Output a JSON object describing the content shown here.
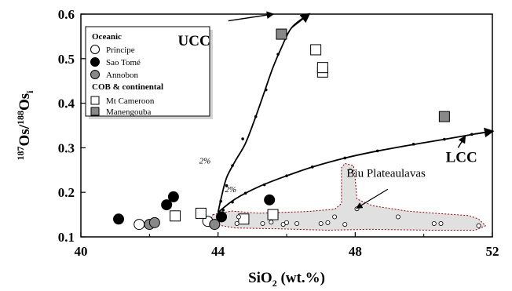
{
  "chart_data": {
    "type": "scatter",
    "title": "",
    "xlabel": {
      "main": "SiO",
      "sub": "2",
      "rest": " (wt.%)"
    },
    "ylabel": {
      "sup1": "187",
      "mid": "Os/",
      "sup2": "188",
      "main": "Os",
      "sub": "i"
    },
    "xlim": [
      40,
      52
    ],
    "ylim": [
      0.1,
      0.6
    ],
    "xticks": [
      40,
      44,
      48,
      52
    ],
    "yticks": [
      0.1,
      0.2,
      0.3,
      0.4,
      0.5,
      0.6
    ],
    "xtick_labels": [
      "40",
      "44",
      "48",
      "52"
    ],
    "ytick_labels": [
      "0.1",
      "0.2",
      "0.3",
      "0.4",
      "0.5",
      "0.6"
    ],
    "grid": false,
    "legend": {
      "placement": "top-left",
      "groups": [
        {
          "heading": "Oceanic",
          "items": [
            {
              "label": "Principe",
              "series": "principe"
            },
            {
              "label": "Sao Tomé",
              "series": "sao_tome"
            },
            {
              "label": "Annobon",
              "series": "annobon"
            }
          ]
        },
        {
          "heading": "COB & continental",
          "items": [
            {
              "label": "Mt Cameroon",
              "series": "mt_cameroon"
            },
            {
              "label": "Manengouba",
              "series": "manengouba"
            }
          ]
        }
      ]
    },
    "series": [
      {
        "id": "principe",
        "name": "Principe",
        "marker": "circle",
        "fill": "#ffffff",
        "stroke": "#000000",
        "points": [
          [
            41.7,
            0.128
          ],
          [
            43.7,
            0.135
          ]
        ]
      },
      {
        "id": "sao_tome",
        "name": "Sao Tomé",
        "marker": "circle",
        "fill": "#000000",
        "stroke": "#000000",
        "points": [
          [
            41.1,
            0.14
          ],
          [
            42.5,
            0.172
          ],
          [
            42.7,
            0.19
          ],
          [
            44.1,
            0.145
          ],
          [
            45.5,
            0.183
          ]
        ]
      },
      {
        "id": "annobon",
        "name": "Annobon",
        "marker": "circle",
        "fill": "#888888",
        "stroke": "#000000",
        "points": [
          [
            42.0,
            0.128
          ],
          [
            42.15,
            0.132
          ],
          [
            43.9,
            0.128
          ]
        ]
      },
      {
        "id": "mt_cameroon",
        "name": "Mt Cameroon",
        "marker": "square",
        "fill": "#ffffff",
        "stroke": "#000000",
        "points": [
          [
            42.75,
            0.147
          ],
          [
            43.5,
            0.153
          ],
          [
            44.75,
            0.14
          ],
          [
            45.6,
            0.15
          ],
          [
            46.85,
            0.52
          ],
          [
            47.05,
            0.47
          ],
          [
            47.05,
            0.48
          ]
        ]
      },
      {
        "id": "manengouba",
        "name": "Manengouba",
        "marker": "square",
        "fill": "#888888",
        "stroke": "#000000",
        "points": [
          [
            45.85,
            0.555
          ],
          [
            50.6,
            0.37
          ]
        ]
      },
      {
        "id": "biu",
        "name": "",
        "marker": "small-circle",
        "fill": "#ffffff",
        "stroke": "#000000",
        "points": [
          [
            44.55,
            0.13
          ],
          [
            44.6,
            0.145
          ],
          [
            45.3,
            0.13
          ],
          [
            45.55,
            0.133
          ],
          [
            45.9,
            0.128
          ],
          [
            46.0,
            0.132
          ],
          [
            46.3,
            0.13
          ],
          [
            47.0,
            0.13
          ],
          [
            47.2,
            0.132
          ],
          [
            47.4,
            0.145
          ],
          [
            47.7,
            0.128
          ],
          [
            47.85,
            0.248
          ],
          [
            48.05,
            0.163
          ],
          [
            49.25,
            0.145
          ],
          [
            50.3,
            0.13
          ],
          [
            50.5,
            0.13
          ],
          [
            51.6,
            0.125
          ]
        ]
      }
    ],
    "curves": [
      {
        "id": "ucc",
        "label": "UCC",
        "label_at": [
          43.3,
          0.53
        ],
        "points": [
          [
            44.0,
            0.155
          ],
          [
            44.1,
            0.19
          ],
          [
            44.25,
            0.233
          ],
          [
            44.5,
            0.27
          ],
          [
            44.8,
            0.31
          ],
          [
            45.1,
            0.37
          ],
          [
            45.35,
            0.425
          ],
          [
            45.6,
            0.48
          ],
          [
            45.85,
            0.525
          ],
          [
            46.15,
            0.57
          ],
          [
            46.65,
            0.6
          ]
        ]
      },
      {
        "id": "lcc",
        "label": "LCC",
        "label_at": [
          51.1,
          0.268
        ],
        "points": [
          [
            44.0,
            0.155
          ],
          [
            44.5,
            0.185
          ],
          [
            45.2,
            0.213
          ],
          [
            46.0,
            0.237
          ],
          [
            46.8,
            0.258
          ],
          [
            47.7,
            0.277
          ],
          [
            48.6,
            0.292
          ],
          [
            49.6,
            0.306
          ],
          [
            50.6,
            0.319
          ],
          [
            51.5,
            0.331
          ],
          [
            52.0,
            0.337
          ]
        ]
      }
    ],
    "curve_ticks": [
      {
        "on": "ucc",
        "points": [
          [
            44.08,
            0.18
          ],
          [
            44.25,
            0.215
          ],
          [
            44.42,
            0.26
          ],
          [
            44.72,
            0.32
          ],
          [
            45.1,
            0.37
          ],
          [
            45.4,
            0.43
          ],
          [
            45.75,
            0.51
          ],
          [
            46.0,
            0.555
          ]
        ]
      },
      {
        "on": "lcc",
        "points": [
          [
            44.15,
            0.16
          ],
          [
            44.42,
            0.178
          ],
          [
            44.8,
            0.198
          ],
          [
            45.35,
            0.217
          ],
          [
            46.0,
            0.237
          ],
          [
            46.75,
            0.257
          ],
          [
            47.7,
            0.277
          ],
          [
            48.65,
            0.293
          ],
          [
            49.7,
            0.308
          ],
          [
            50.6,
            0.319
          ],
          [
            51.4,
            0.33
          ]
        ]
      }
    ],
    "curve_pct_labels": [
      {
        "text": "2%",
        "at": [
          43.45,
          0.265
        ]
      },
      {
        "text": "2%",
        "at": [
          44.2,
          0.2
        ]
      }
    ],
    "field": {
      "label": "Biu Plateaulavas",
      "label_at": [
        48.9,
        0.235
      ],
      "fill": "#e0e0e0",
      "stroke": "#990000",
      "outline": [
        [
          43.85,
          0.15
        ],
        [
          44.4,
          0.158
        ],
        [
          45.2,
          0.153
        ],
        [
          45.9,
          0.155
        ],
        [
          46.6,
          0.157
        ],
        [
          47.4,
          0.162
        ],
        [
          47.6,
          0.175
        ],
        [
          47.6,
          0.255
        ],
        [
          47.7,
          0.265
        ],
        [
          47.95,
          0.26
        ],
        [
          48.0,
          0.23
        ],
        [
          48.05,
          0.185
        ],
        [
          48.5,
          0.17
        ],
        [
          49.5,
          0.158
        ],
        [
          50.5,
          0.152
        ],
        [
          51.3,
          0.148
        ],
        [
          51.6,
          0.14
        ],
        [
          51.8,
          0.125
        ],
        [
          51.5,
          0.115
        ],
        [
          50.2,
          0.115
        ],
        [
          48.4,
          0.117
        ],
        [
          47.2,
          0.115
        ],
        [
          45.8,
          0.118
        ],
        [
          44.5,
          0.12
        ],
        [
          43.9,
          0.128
        ],
        [
          43.8,
          0.14
        ]
      ],
      "arrow_from": [
        48.95,
        0.207
      ],
      "arrow_to": [
        48.05,
        0.165
      ]
    },
    "colors": {
      "shade": "#888888",
      "field_fill": "#e0e0e0",
      "field_outline": "#990000"
    }
  }
}
